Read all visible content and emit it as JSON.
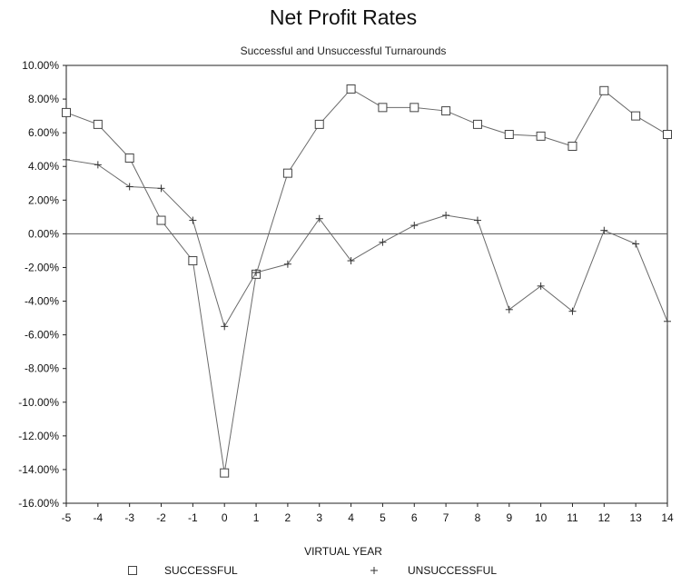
{
  "chart_data": {
    "type": "line",
    "title": "Net Profit Rates",
    "subtitle": "Successful and Unsuccessful Turnarounds",
    "xlabel": "VIRTUAL YEAR",
    "ylabel": "",
    "x": [
      -5,
      -4,
      -3,
      -2,
      -1,
      0,
      1,
      2,
      3,
      4,
      5,
      6,
      7,
      8,
      9,
      10,
      11,
      12,
      13,
      14
    ],
    "xlim": [
      -5,
      14
    ],
    "ylim": [
      -16,
      10
    ],
    "y_ticks": [
      "10.00%",
      "8.00%",
      "6.00%",
      "4.00%",
      "2.00%",
      "0.00%",
      "-2.00%",
      "-4.00%",
      "-6.00%",
      "-8.00%",
      "-10.00%",
      "-12.00%",
      "-14.00%",
      "-16.00%"
    ],
    "x_ticks": [
      "-5",
      "-4",
      "-3",
      "-2",
      "-1",
      "0",
      "1",
      "2",
      "3",
      "4",
      "5",
      "6",
      "7",
      "8",
      "9",
      "10",
      "11",
      "12",
      "13",
      "14"
    ],
    "grid": false,
    "zero_line": true,
    "legend_position": "bottom",
    "series": [
      {
        "name": "SUCCESSFUL",
        "marker": "square",
        "values": [
          7.2,
          6.5,
          4.5,
          0.8,
          -1.6,
          -14.2,
          -2.4,
          3.6,
          6.5,
          8.6,
          7.5,
          7.5,
          7.3,
          6.5,
          5.9,
          5.8,
          5.2,
          8.5,
          7.0,
          5.9
        ]
      },
      {
        "name": "UNSUCCESSFUL",
        "marker": "plus",
        "values": [
          4.4,
          4.1,
          2.8,
          2.7,
          0.8,
          -5.5,
          -2.3,
          -1.8,
          0.9,
          -1.6,
          -0.5,
          0.5,
          1.1,
          0.8,
          -4.5,
          -3.1,
          -4.6,
          0.2,
          -0.6,
          -5.2
        ]
      }
    ]
  }
}
